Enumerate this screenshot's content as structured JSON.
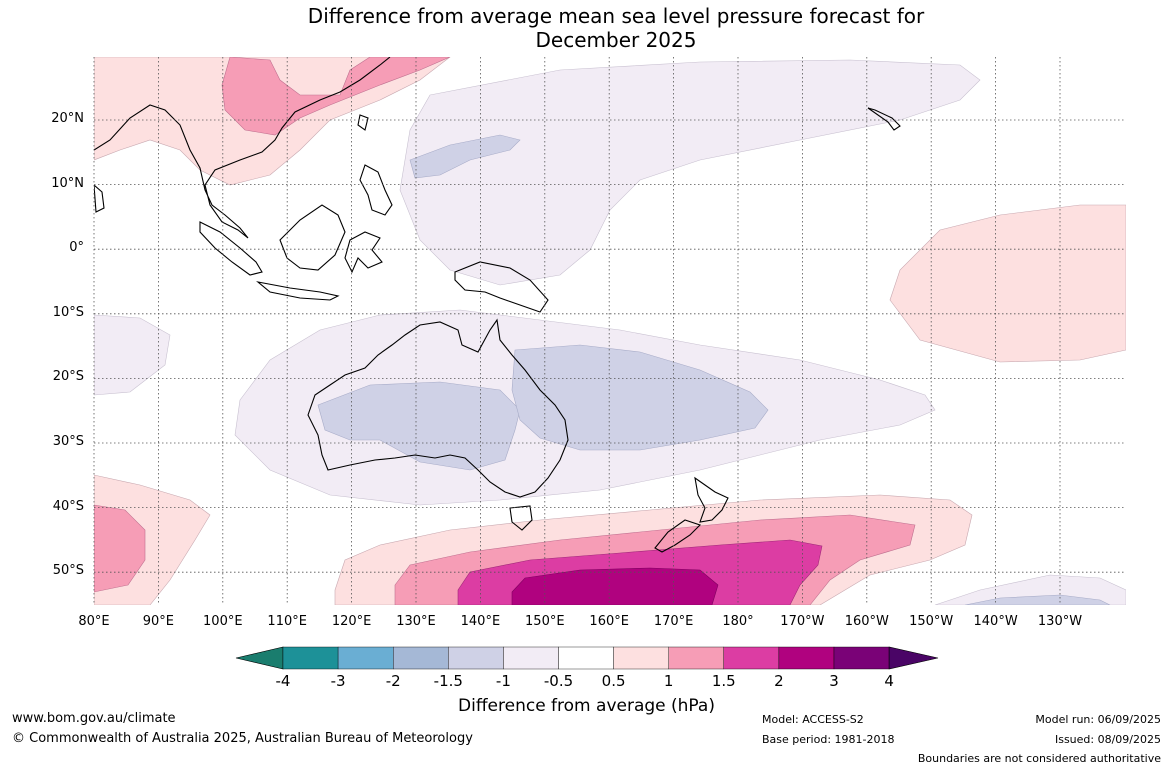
{
  "title_line1": "Difference from average mean sea level pressure forecast for",
  "title_line2": "December 2025",
  "lat_labels": [
    "20°N",
    "10°N",
    "0°",
    "10°S",
    "20°S",
    "30°S",
    "40°S",
    "50°S"
  ],
  "lon_labels": [
    "80°E",
    "90°E",
    "100°E",
    "110°E",
    "120°E",
    "130°E",
    "140°E",
    "150°E",
    "160°E",
    "170°E",
    "180°",
    "170°W",
    "160°W",
    "150°W",
    "140°W",
    "130°W"
  ],
  "colorbar": {
    "labels": [
      "-4",
      "-3",
      "-2",
      "-1.5",
      "-1",
      "-0.5",
      "0.5",
      "1",
      "1.5",
      "2",
      "3",
      "4"
    ],
    "colors": [
      "#1a7d6e",
      "#1d9198",
      "#6aaed3",
      "#a5b8d6",
      "#cfd1e6",
      "#f2ecf5",
      "#ffffff",
      "#fde0e0",
      "#f69db6",
      "#dc3da3",
      "#b0027f",
      "#7a0277",
      "#4a0566"
    ],
    "title": "Difference from average (hPa)"
  },
  "footer": {
    "website": "www.bom.gov.au/climate",
    "copyright": "© Commonwealth of Australia 2025, Australian Bureau of Meteorology",
    "model": "Model: ACCESS-S2",
    "base_period": "Base period: 1981-2018",
    "model_run": "Model run: 06/09/2025",
    "issued": "Issued: 08/09/2025",
    "disclaimer": "Boundaries are not considered authoritative"
  }
}
